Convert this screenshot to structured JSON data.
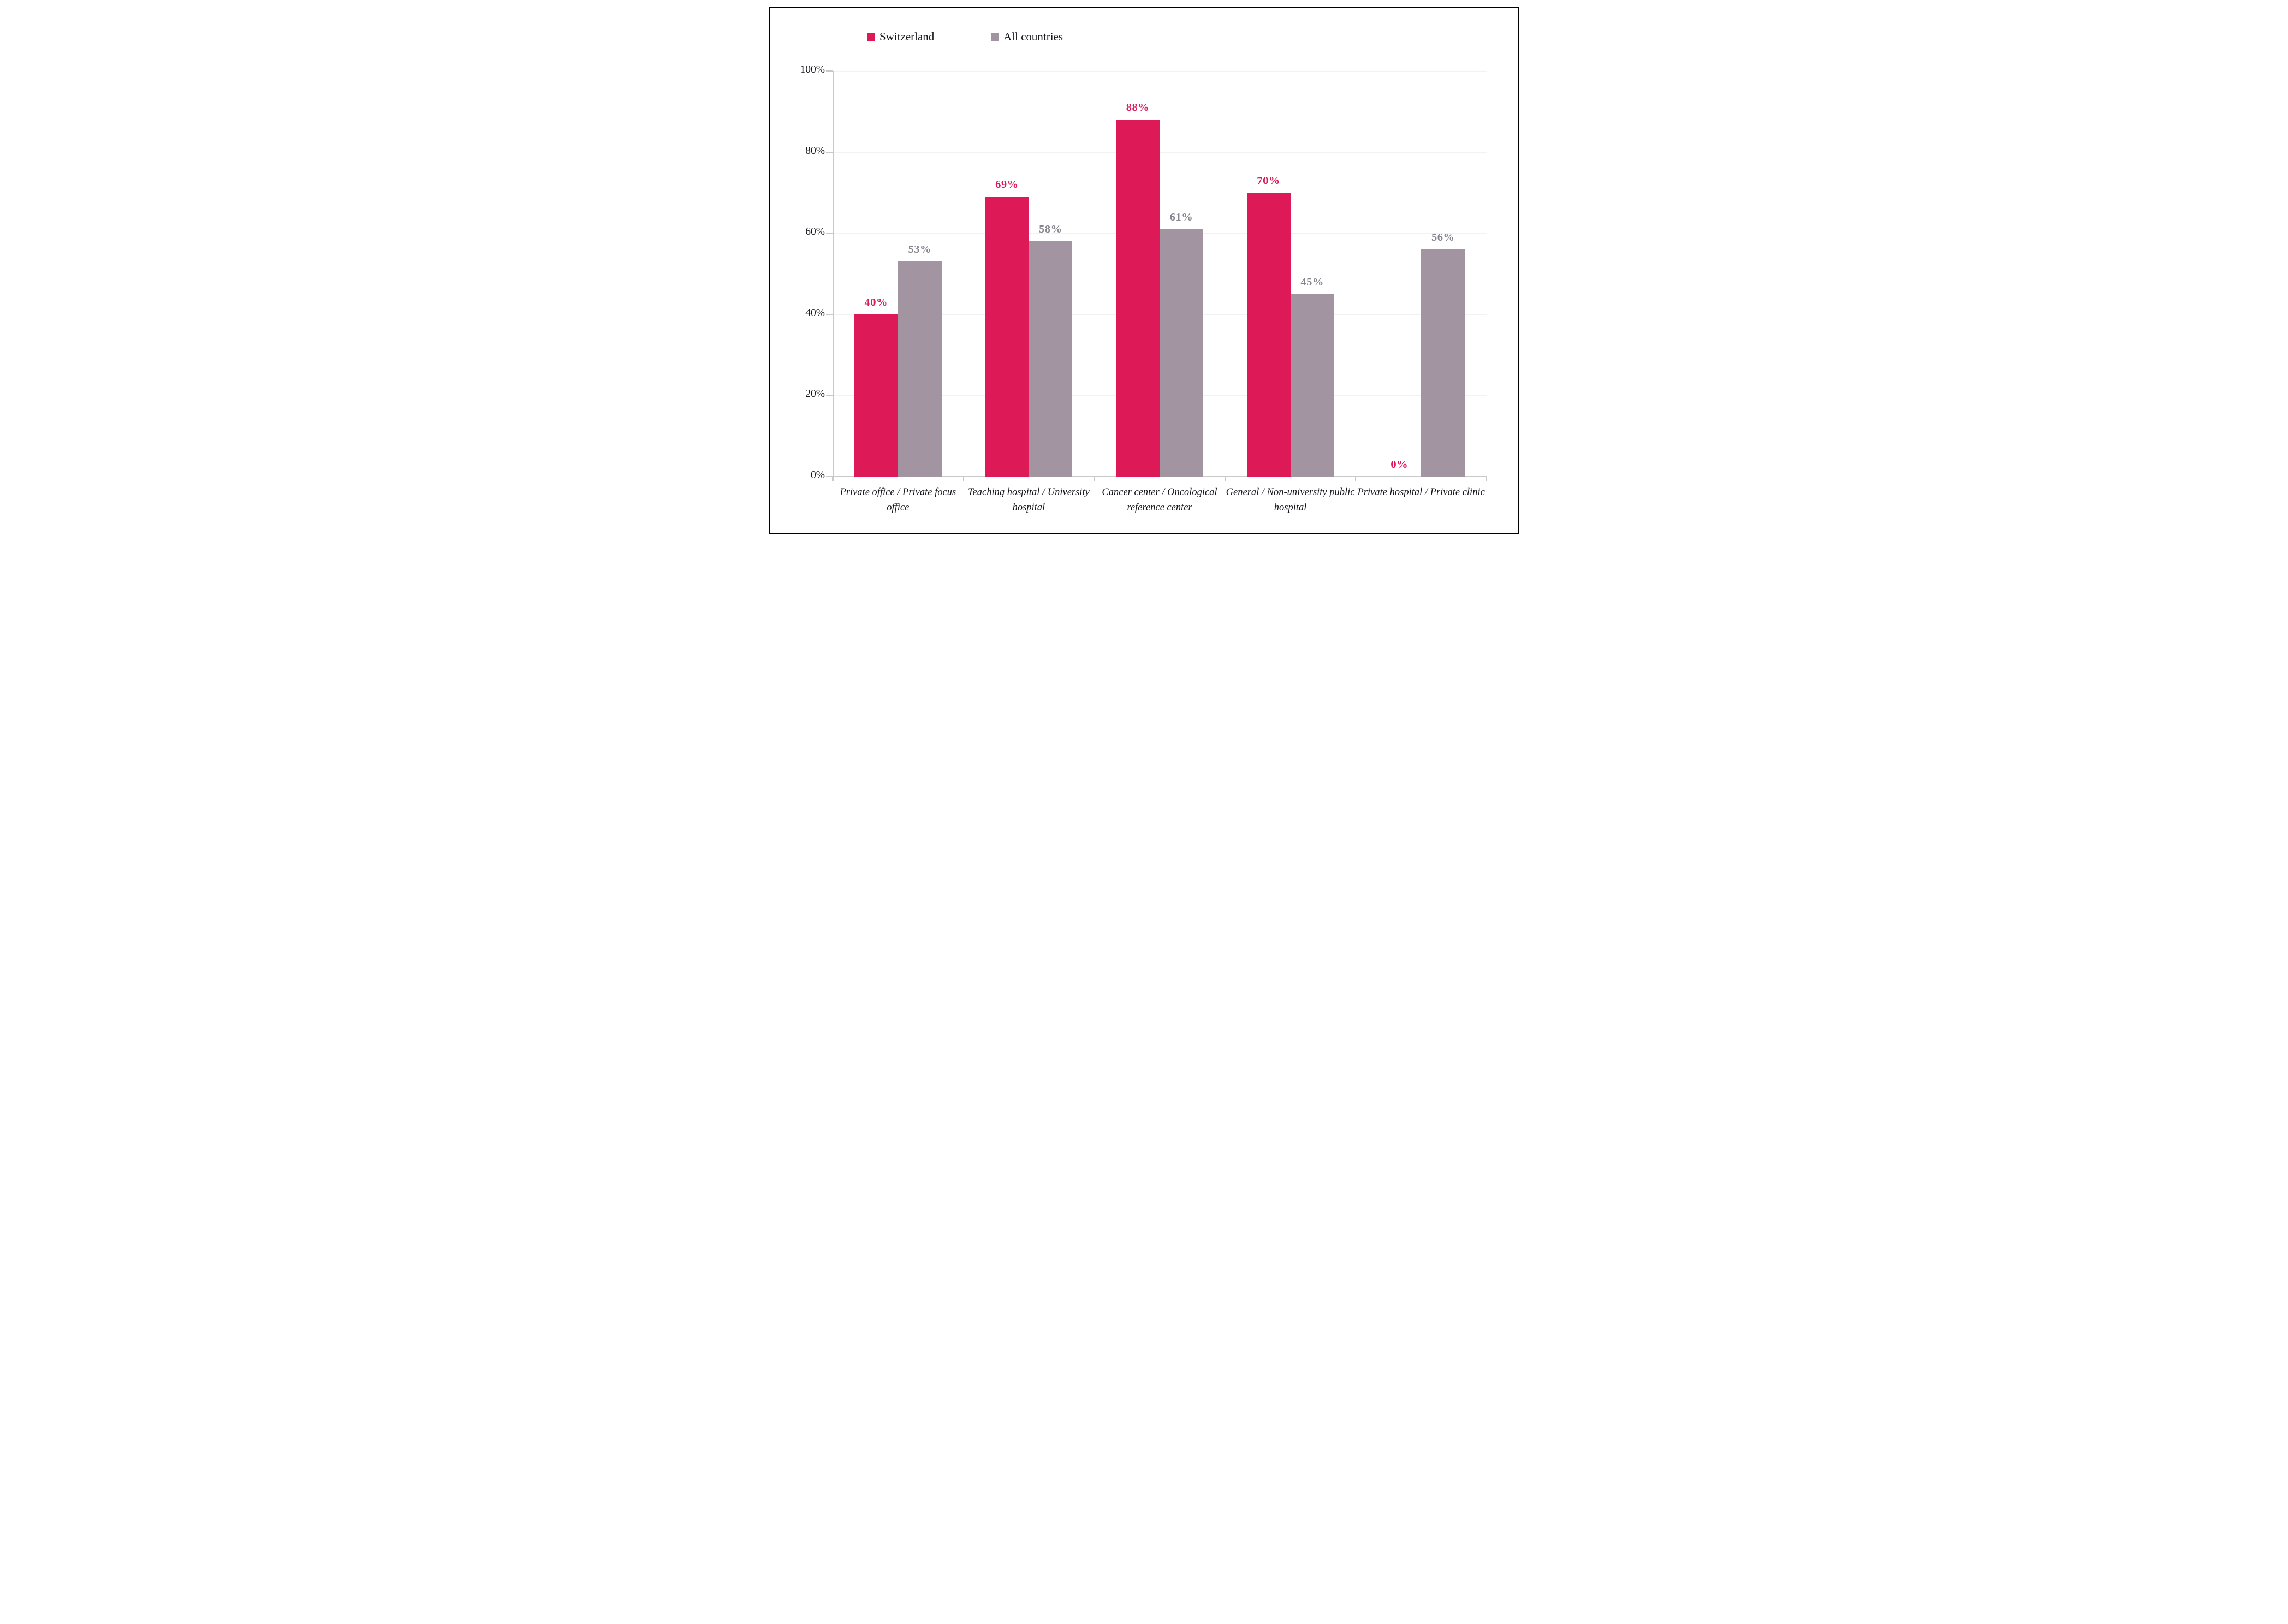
{
  "legend": [
    {
      "label": "Switzerland",
      "color": "#dd1a57"
    },
    {
      "label": "All countries",
      "color": "#a294a1"
    }
  ],
  "chart_data": {
    "type": "bar",
    "categories": [
      "Private office / Private focus office",
      "Teaching hospital / University hospital",
      "Cancer center / Oncological reference center",
      "General / Non-university public hospital",
      "Private hospital / Private clinic"
    ],
    "series": [
      {
        "name": "Switzerland",
        "color": "#dd1a57",
        "label_color": "#dd1a57",
        "values": [
          40,
          69,
          88,
          70,
          0
        ],
        "labels": [
          "40%",
          "69%",
          "88%",
          "70%",
          "0%"
        ]
      },
      {
        "name": "All countries",
        "color": "#a294a1",
        "label_color": "#84858d",
        "values": [
          53,
          58,
          61,
          45,
          56
        ],
        "labels": [
          "53%",
          "58%",
          "61%",
          "45%",
          "56%"
        ]
      }
    ],
    "ylabel": "",
    "xlabel": "",
    "ylim": [
      0,
      100
    ],
    "ytick_values": [
      100,
      80,
      60,
      40,
      20,
      0
    ],
    "yticks": [
      "100%",
      "80%",
      "60%",
      "40%",
      "20%",
      "0%"
    ],
    "grid": true,
    "legend_position": "top-left",
    "value_label_format": "percent"
  }
}
